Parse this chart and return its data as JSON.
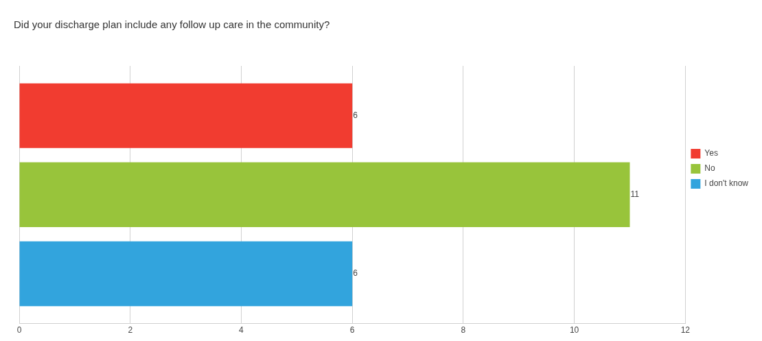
{
  "chart_data": {
    "type": "bar",
    "orientation": "horizontal",
    "title": "Did your discharge plan include any follow up care in the community?",
    "categories": [
      null
    ],
    "series": [
      {
        "name": "Yes",
        "color": "#f13c30",
        "values": [
          6
        ]
      },
      {
        "name": "No",
        "color": "#98c43b",
        "values": [
          11
        ]
      },
      {
        "name": "I don't know",
        "color": "#32a4dd",
        "values": [
          6
        ]
      }
    ],
    "xlim": [
      0,
      12
    ],
    "xticks": [
      0,
      2,
      4,
      6,
      8,
      10,
      12
    ],
    "grid": "x",
    "legend": "right",
    "tick_labels": "x",
    "data_labels": true
  }
}
